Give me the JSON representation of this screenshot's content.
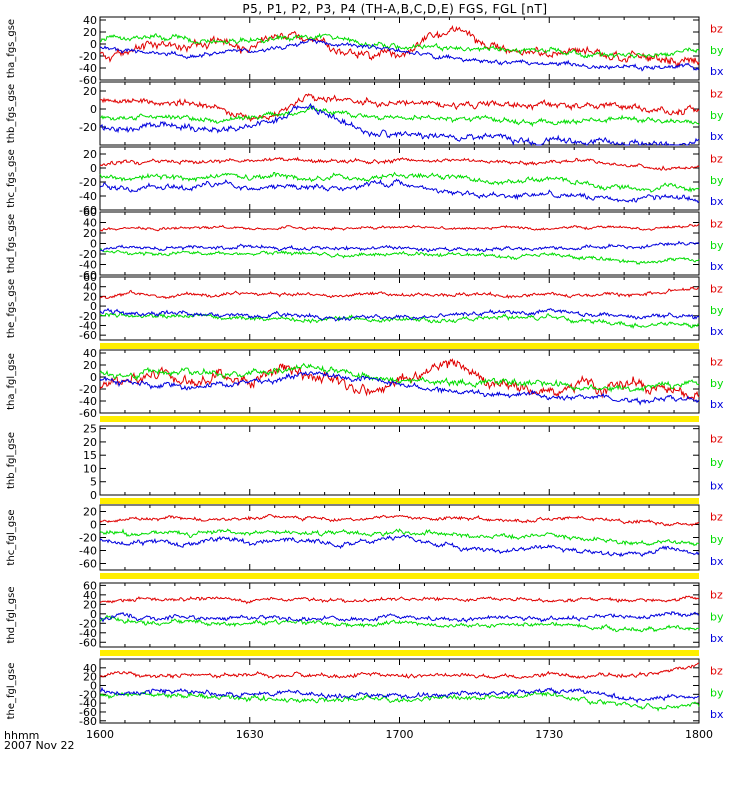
{
  "title": "P5, P1, P2, P3, P4 (TH-A,B,C,D,E) FGS, FGL [nT]",
  "footer": {
    "hhmm": "hhmm",
    "date": "2007 Nov 22"
  },
  "colors": {
    "bz": "#e00000",
    "by": "#00dd00",
    "bx": "#0000dd",
    "bar": "#ffee00",
    "axis": "#000000"
  },
  "chart_data": {
    "type": "line",
    "x_tick_labels": [
      "1600",
      "1630",
      "1700",
      "1730",
      "1800"
    ],
    "x_range": [
      0,
      120
    ],
    "x_unit": "minutes after 16:00 UT",
    "series_labels": [
      "bz",
      "by",
      "bx"
    ],
    "panels": [
      {
        "ylabel": "tha_fgs_gse",
        "ylim": [
          -60,
          45
        ],
        "yticks": [
          40,
          20,
          0,
          -20,
          -40,
          -60
        ],
        "status_bar": false,
        "series": [
          {
            "name": "bz",
            "base": [
              -20,
              -15,
              5,
              -5,
              10,
              -10,
              15,
              5,
              -10,
              -15,
              -20,
              10,
              25,
              -5,
              -15,
              -20,
              -10,
              -20,
              -15,
              -25,
              -30
            ],
            "noise": 8
          },
          {
            "name": "by",
            "base": [
              5,
              10,
              15,
              10,
              0,
              5,
              10,
              15,
              10,
              0,
              -5,
              -5,
              -10,
              -5,
              -10,
              -10,
              -15,
              -20,
              -20,
              -15,
              -10
            ],
            "noise": 5
          },
          {
            "name": "bx",
            "base": [
              -5,
              -10,
              -15,
              -20,
              -15,
              -10,
              -5,
              5,
              0,
              -5,
              -10,
              -20,
              -25,
              -30,
              -30,
              -35,
              -35,
              -35,
              -40,
              -38,
              -40
            ],
            "noise": 4
          }
        ]
      },
      {
        "ylabel": "thb_fgs_gse",
        "ylim": [
          -40,
          30
        ],
        "yticks": [
          20,
          0,
          -20
        ],
        "status_bar": false,
        "series": [
          {
            "name": "bz",
            "base": [
              10,
              12,
              8,
              10,
              0,
              -10,
              -5,
              15,
              10,
              8,
              5,
              5,
              3,
              5,
              3,
              5,
              3,
              2,
              0,
              -2,
              0
            ],
            "noise": 4
          },
          {
            "name": "by",
            "base": [
              -10,
              -10,
              -8,
              -10,
              -12,
              -10,
              -5,
              0,
              -5,
              -8,
              -10,
              -10,
              -12,
              -10,
              -15,
              -15,
              -15,
              -12,
              -12,
              -15,
              -15
            ],
            "noise": 3
          },
          {
            "name": "bx",
            "base": [
              -20,
              -25,
              -15,
              -20,
              -25,
              -20,
              -10,
              5,
              -15,
              -25,
              -30,
              -30,
              -32,
              -30,
              -35,
              -35,
              -36,
              -36,
              -38,
              -38,
              -36
            ],
            "noise": 4
          }
        ]
      },
      {
        "ylabel": "thc_fgs_gse",
        "ylim": [
          -60,
          30
        ],
        "yticks": [
          20,
          0,
          -20,
          -40,
          -60
        ],
        "status_bar": false,
        "series": [
          {
            "name": "bz",
            "base": [
              5,
              8,
              10,
              10,
              8,
              10,
              12,
              10,
              8,
              10,
              12,
              10,
              10,
              8,
              5,
              8,
              10,
              5,
              5,
              0,
              0
            ],
            "noise": 3
          },
          {
            "name": "by",
            "base": [
              -10,
              -15,
              -12,
              -15,
              -10,
              -15,
              -10,
              -15,
              -12,
              -15,
              -10,
              -12,
              -15,
              -20,
              -20,
              -15,
              -20,
              -25,
              -30,
              -25,
              -30
            ],
            "noise": 4
          },
          {
            "name": "bx",
            "base": [
              -25,
              -30,
              -25,
              -30,
              -20,
              -30,
              -25,
              -25,
              -30,
              -25,
              -20,
              -30,
              -35,
              -40,
              -40,
              -35,
              -40,
              -45,
              -45,
              -40,
              -45
            ],
            "noise": 4
          }
        ]
      },
      {
        "ylabel": "thd_fgs_gse",
        "ylim": [
          -60,
          60
        ],
        "yticks": [
          60,
          40,
          20,
          0,
          -20,
          -40,
          -60
        ],
        "status_bar": false,
        "series": [
          {
            "name": "bz",
            "base": [
              25,
              30,
              28,
              30,
              32,
              28,
              30,
              30,
              28,
              30,
              32,
              30,
              28,
              30,
              30,
              28,
              30,
              32,
              28,
              30,
              35
            ],
            "noise": 3
          },
          {
            "name": "by",
            "base": [
              -10,
              -15,
              -20,
              -15,
              -20,
              -20,
              -18,
              -20,
              -22,
              -20,
              -18,
              -20,
              -22,
              -25,
              -25,
              -20,
              -25,
              -30,
              -35,
              -30,
              -30
            ],
            "noise": 4
          },
          {
            "name": "bx",
            "base": [
              -10,
              -5,
              -10,
              -8,
              -10,
              -5,
              -8,
              -10,
              -8,
              -10,
              -8,
              -10,
              -10,
              -8,
              -10,
              -8,
              -10,
              -5,
              -5,
              0,
              0
            ],
            "noise": 4
          }
        ]
      },
      {
        "ylabel": "the_fgs_gse",
        "ylim": [
          -70,
          60
        ],
        "yticks": [
          60,
          40,
          20,
          0,
          -20,
          -40,
          -60
        ],
        "status_bar": true,
        "series": [
          {
            "name": "bz",
            "base": [
              20,
              25,
              20,
              25,
              20,
              25,
              22,
              25,
              20,
              25,
              22,
              25,
              25,
              22,
              20,
              25,
              20,
              25,
              22,
              30,
              40
            ],
            "noise": 4
          },
          {
            "name": "by",
            "base": [
              -20,
              -20,
              -25,
              -20,
              -25,
              -25,
              -30,
              -28,
              -25,
              -30,
              -28,
              -30,
              -30,
              -25,
              -25,
              -20,
              -30,
              -35,
              -40,
              -35,
              -40
            ],
            "noise": 5
          },
          {
            "name": "bx",
            "base": [
              -10,
              -15,
              -15,
              -15,
              -20,
              -20,
              -20,
              -20,
              -25,
              -20,
              -25,
              -20,
              -20,
              -15,
              -15,
              -10,
              -15,
              -20,
              -25,
              -20,
              -20
            ],
            "noise": 5
          }
        ]
      },
      {
        "ylabel": "tha_fgl_gse",
        "ylim": [
          -60,
          45
        ],
        "yticks": [
          40,
          20,
          0,
          -20,
          -40,
          -60
        ],
        "status_bar": true,
        "series": [
          {
            "name": "bz",
            "base": [
              -15,
              -10,
              5,
              -10,
              15,
              -15,
              20,
              0,
              -10,
              -20,
              -15,
              15,
              20,
              -10,
              -15,
              -25,
              -15,
              -20,
              -15,
              -25,
              -35
            ],
            "noise": 10
          },
          {
            "name": "by",
            "base": [
              5,
              5,
              10,
              10,
              5,
              5,
              10,
              15,
              10,
              0,
              -5,
              -5,
              -10,
              -5,
              -10,
              -10,
              -15,
              -20,
              -20,
              -15,
              -10
            ],
            "noise": 6
          },
          {
            "name": "bx",
            "base": [
              -5,
              -10,
              -15,
              -20,
              -15,
              -10,
              -5,
              5,
              0,
              -5,
              -10,
              -20,
              -25,
              -30,
              -30,
              -35,
              -35,
              -35,
              -40,
              -38,
              -40
            ],
            "noise": 5
          }
        ]
      },
      {
        "ylabel": "thb_fgl_gse",
        "ylim": [
          0,
          26
        ],
        "yticks": [
          25,
          20,
          15,
          10,
          5,
          0
        ],
        "status_bar": true,
        "series": []
      },
      {
        "ylabel": "thc_fgl_gse",
        "ylim": [
          -70,
          30
        ],
        "yticks": [
          20,
          0,
          -20,
          -40,
          -60
        ],
        "status_bar": true,
        "series": [
          {
            "name": "bz",
            "base": [
              5,
              8,
              10,
              10,
              8,
              10,
              12,
              10,
              8,
              10,
              12,
              10,
              10,
              8,
              5,
              8,
              10,
              5,
              5,
              0,
              0
            ],
            "noise": 3
          },
          {
            "name": "by",
            "base": [
              -10,
              -15,
              -12,
              -15,
              -10,
              -15,
              -10,
              -15,
              -12,
              -15,
              -10,
              -12,
              -15,
              -20,
              -20,
              -15,
              -20,
              -25,
              -30,
              -25,
              -30
            ],
            "noise": 4
          },
          {
            "name": "bx",
            "base": [
              -25,
              -30,
              -25,
              -30,
              -20,
              -30,
              -25,
              -25,
              -30,
              -25,
              -20,
              -30,
              -35,
              -40,
              -40,
              -35,
              -40,
              -45,
              -45,
              -40,
              -45
            ],
            "noise": 4
          }
        ]
      },
      {
        "ylabel": "thd_fgl_gse",
        "ylim": [
          -70,
          65
        ],
        "yticks": [
          60,
          40,
          20,
          0,
          -20,
          -40,
          -60
        ],
        "status_bar": true,
        "series": [
          {
            "name": "bz",
            "base": [
              25,
              30,
              28,
              30,
              32,
              28,
              30,
              30,
              28,
              30,
              32,
              30,
              28,
              30,
              30,
              28,
              30,
              32,
              28,
              30,
              35
            ],
            "noise": 4
          },
          {
            "name": "by",
            "base": [
              -10,
              -15,
              -20,
              -15,
              -20,
              -20,
              -18,
              -20,
              -22,
              -20,
              -18,
              -20,
              -22,
              -25,
              -25,
              -20,
              -25,
              -30,
              -35,
              -30,
              -30
            ],
            "noise": 5
          },
          {
            "name": "bx",
            "base": [
              -10,
              -5,
              -10,
              -8,
              -10,
              -5,
              -8,
              -10,
              -8,
              -10,
              -8,
              -10,
              -10,
              -8,
              -10,
              -8,
              -10,
              -5,
              -5,
              0,
              0
            ],
            "noise": 5
          }
        ]
      },
      {
        "ylabel": "the_fgl_gse",
        "ylim": [
          -85,
          60
        ],
        "yticks": [
          40,
          20,
          0,
          -20,
          -40,
          -60,
          -80
        ],
        "status_bar": false,
        "series": [
          {
            "name": "bz",
            "base": [
              20,
              25,
              20,
              25,
              20,
              25,
              22,
              25,
              20,
              25,
              22,
              25,
              25,
              22,
              20,
              25,
              20,
              25,
              22,
              35,
              45
            ],
            "noise": 5
          },
          {
            "name": "by",
            "base": [
              -20,
              -25,
              -25,
              -20,
              -30,
              -30,
              -30,
              -30,
              -30,
              -30,
              -30,
              -30,
              -30,
              -25,
              -25,
              -20,
              -30,
              -40,
              -50,
              -45,
              -45
            ],
            "noise": 6
          },
          {
            "name": "bx",
            "base": [
              -10,
              -15,
              -15,
              -15,
              -20,
              -20,
              -20,
              -20,
              -25,
              -20,
              -25,
              -20,
              -20,
              -15,
              -15,
              -10,
              -15,
              -25,
              -30,
              -25,
              -25
            ],
            "noise": 6
          }
        ]
      }
    ]
  }
}
